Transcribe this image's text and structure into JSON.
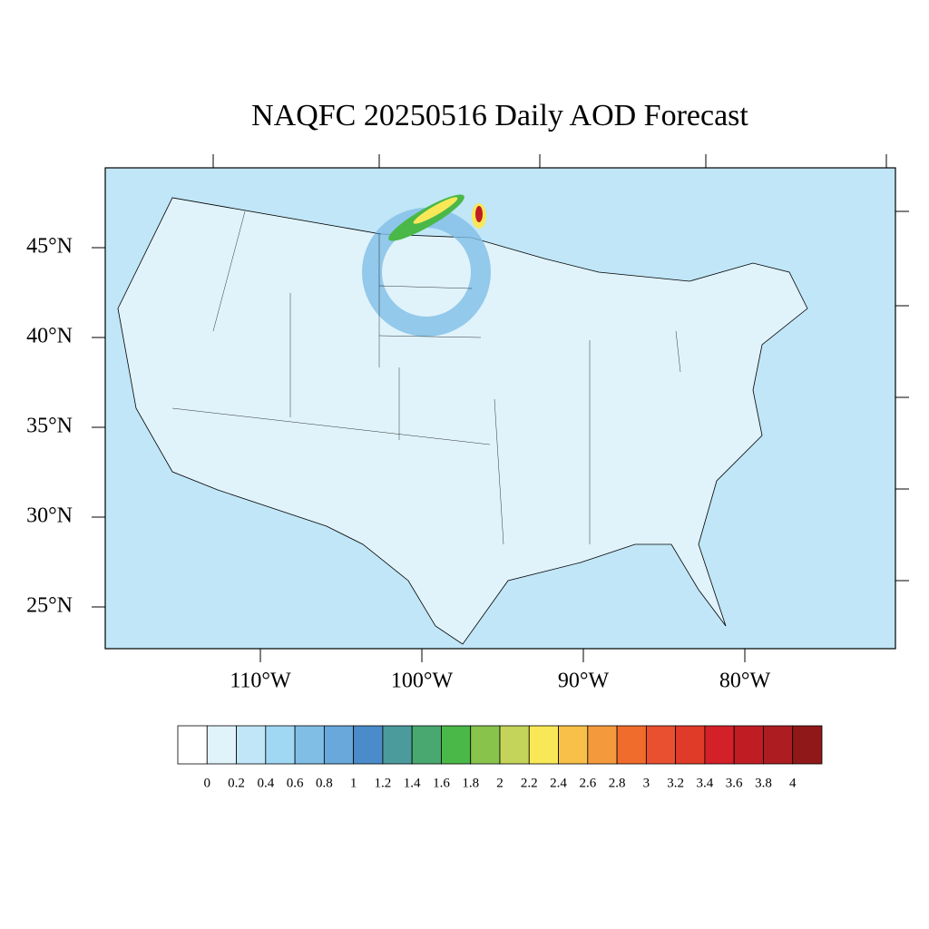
{
  "title": "NAQFC 20250516 Daily AOD Forecast",
  "map": {
    "lat_labels": [
      "45°N",
      "40°N",
      "35°N",
      "30°N",
      "25°N"
    ],
    "lon_labels": [
      "110°W",
      "100°W",
      "90°W",
      "80°W"
    ]
  },
  "colorbar": {
    "levels": [
      0,
      0.2,
      0.4,
      0.6,
      0.8,
      1,
      1.2,
      1.4,
      1.6,
      1.8,
      2,
      2.2,
      2.4,
      2.6,
      2.8,
      3,
      3.2,
      3.4,
      3.6,
      3.8,
      4
    ],
    "colors": [
      "#ffffff",
      "#e0f3fb",
      "#c0e6f7",
      "#a0d8f3",
      "#80bee6",
      "#68a8da",
      "#4a8bc9",
      "#4b9a9c",
      "#48a870",
      "#4ab848",
      "#88c44c",
      "#c4d45a",
      "#f8e858",
      "#f8c048",
      "#f49a3c",
      "#f06c2c",
      "#e85030",
      "#e03a28",
      "#d42028",
      "#c01c24",
      "#ac1c20",
      "#901818"
    ]
  }
}
